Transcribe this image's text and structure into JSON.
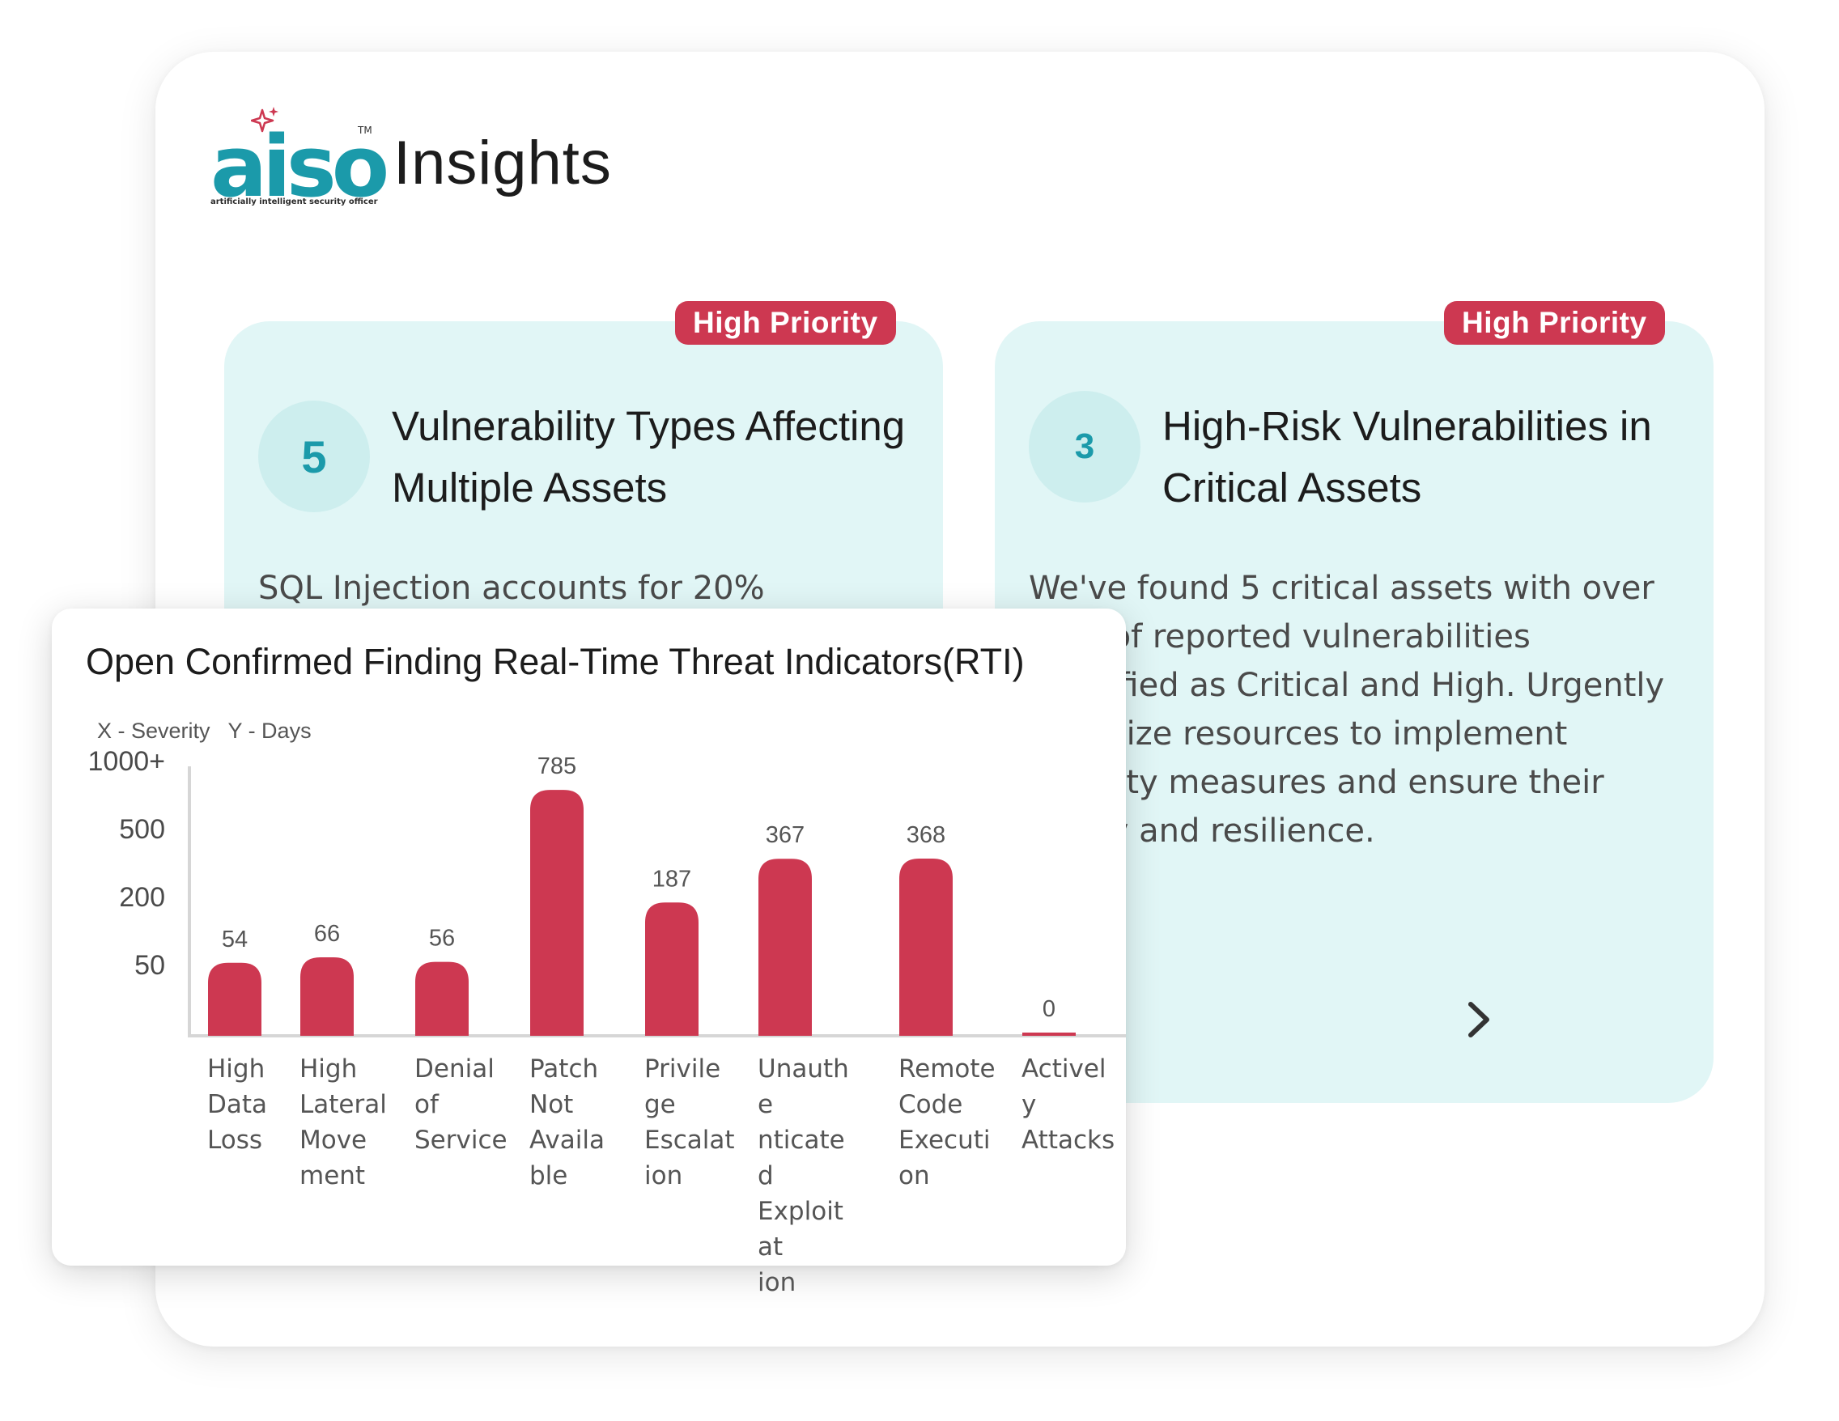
{
  "brand": {
    "logo_text": "aiso",
    "tm": "TM",
    "tagline": "artificially intelligent security officer",
    "accent_color": "#1b9aaa",
    "star_color": "#cd3851"
  },
  "page": {
    "title": "Insights"
  },
  "cards": [
    {
      "badge": "High Priority",
      "count": "5",
      "title": "Vulnerability Types Affecting Multiple Assets",
      "description": "SQL Injection accounts for 20%"
    },
    {
      "badge": "High Priority",
      "count": "3",
      "title": "High-Risk Vulnerabilities in Critical Assets",
      "description": "We've found 5 critical assets with over 50% of reported vulnerabilities classified as Critical and High. Urgently prioritize resources to implement security measures and ensure their safety and resilience.",
      "next_icon": "chevron-right-icon"
    }
  ],
  "chart_data": {
    "type": "bar",
    "title": "Open Confirmed Finding Real-Time Threat Indicators(RTI)",
    "axis_legend": {
      "x": "X - Severity",
      "y": "Y - Days"
    },
    "y_tick_labels": [
      "1000+",
      "500",
      "200",
      "50"
    ],
    "categories": [
      "High Data Loss",
      "High Lateral Movement",
      "Denial of Service",
      "Patch Not Available",
      "Privilege Escalation",
      "Unauthenticated Exploitation",
      "Remote Code Execution",
      "Actively Attacks"
    ],
    "category_label_lines": [
      [
        "High",
        "Data",
        "Loss"
      ],
      [
        "High",
        "Lateral",
        "Move",
        "ment"
      ],
      [
        "Denial",
        "of",
        "Service"
      ],
      [
        "Patch",
        "Not",
        "Availa",
        "ble"
      ],
      [
        "Privile",
        "ge",
        "Escalat",
        "ion"
      ],
      [
        "Unauthe",
        "nticated",
        "Exploitat",
        "ion"
      ],
      [
        "Remote",
        "Code",
        "Executi",
        "on"
      ],
      [
        "Actively",
        "Attacks"
      ]
    ],
    "values": [
      54,
      66,
      56,
      785,
      187,
      367,
      368,
      0
    ],
    "bar_color": "#cd3851",
    "grid": false,
    "legend": "none"
  }
}
